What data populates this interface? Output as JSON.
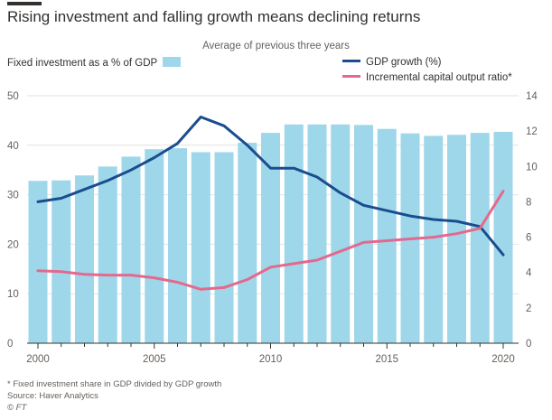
{
  "title": "Rising investment and falling growth means declining returns",
  "subtitle": "Average of previous three years",
  "legend": {
    "investment": "Fixed investment as a % of GDP",
    "gdp": "GDP growth (%)",
    "icor": "Incremental capital output ratio*"
  },
  "footnotes": {
    "note": "* Fixed investment share in GDP divided by GDP growth",
    "source": "Source: Haver Analytics",
    "credit": "© FT"
  },
  "colors": {
    "bars": "#9ed7ea",
    "gdp": "#1a4d8f",
    "icor": "#e5688d",
    "text": "#33302e",
    "grid": "#e6e2df"
  },
  "chart_data": {
    "type": "bar",
    "x": [
      2000,
      2001,
      2002,
      2003,
      2004,
      2005,
      2006,
      2007,
      2008,
      2009,
      2010,
      2011,
      2012,
      2013,
      2014,
      2015,
      2016,
      2017,
      2018,
      2019,
      2020
    ],
    "xticks": [
      2000,
      2005,
      2010,
      2015,
      2020
    ],
    "left_axis": {
      "ylim": [
        0,
        50
      ],
      "ticks": [
        0,
        10,
        20,
        30,
        40,
        50
      ]
    },
    "right_axis": {
      "ylim": [
        0,
        14
      ],
      "ticks": [
        0,
        2,
        4,
        6,
        8,
        10,
        12,
        14
      ]
    },
    "series": [
      {
        "name": "Fixed investment as a % of GDP",
        "type": "bar",
        "axis": "left",
        "values": [
          32.8,
          32.9,
          33.9,
          35.7,
          37.7,
          39.2,
          39.4,
          38.6,
          38.6,
          40.5,
          42.5,
          44.2,
          44.2,
          44.2,
          44.1,
          43.3,
          42.4,
          41.9,
          42.1,
          42.5,
          42.7
        ]
      },
      {
        "name": "GDP growth (%)",
        "type": "line",
        "axis": "right",
        "values": [
          8.0,
          8.2,
          8.7,
          9.2,
          9.8,
          10.5,
          11.3,
          12.8,
          12.3,
          11.2,
          9.9,
          9.9,
          9.4,
          8.5,
          7.8,
          7.5,
          7.2,
          7.0,
          6.9,
          6.6,
          5.0
        ]
      },
      {
        "name": "Incremental capital output ratio*",
        "type": "line",
        "axis": "right",
        "values": [
          4.1,
          4.05,
          3.9,
          3.85,
          3.85,
          3.7,
          3.45,
          3.05,
          3.15,
          3.6,
          4.3,
          4.5,
          4.7,
          5.2,
          5.7,
          5.8,
          5.9,
          6.0,
          6.2,
          6.5,
          8.6
        ]
      }
    ]
  }
}
